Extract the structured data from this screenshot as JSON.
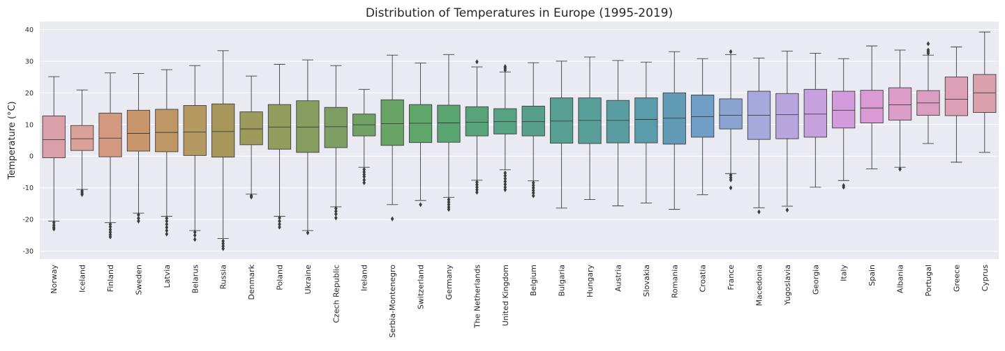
{
  "chart_data": {
    "type": "box",
    "title": "Distribution of Temperatures in Europe (1995-2019)",
    "xlabel": "",
    "ylabel": "Temperature (°C)",
    "ylim": [
      -32.5,
      42.5
    ],
    "yticks": [
      -30,
      -20,
      -10,
      0,
      10,
      20,
      30,
      40
    ],
    "grid": true,
    "background": "#eaeaf2",
    "median_color": "#3d3d3d",
    "categories": [
      "Norway",
      "Iceland",
      "Finland",
      "Sweden",
      "Latvia",
      "Belarus",
      "Russia",
      "Denmark",
      "Poland",
      "Ukraine",
      "Czech Republic",
      "Ireland",
      "Serbia-Montenegro",
      "Switzerland",
      "Germany",
      "The Netherlands",
      "United Kingdom",
      "Belgium",
      "Bulgaria",
      "Hungary",
      "Austria",
      "Slovakia",
      "Romania",
      "Croatia",
      "France",
      "Macedonia",
      "Yugoslavia",
      "Georgia",
      "Italy",
      "Spain",
      "Albania",
      "Portugal",
      "Greece",
      "Cyprus"
    ],
    "boxes": [
      {
        "category": "Norway",
        "color": "#d9a0aa",
        "q1": -0.5,
        "median": 5.2,
        "q3": 12.7,
        "whisker_low": -20.5,
        "whisker_high": 25.1,
        "outliers": [
          -21.0,
          -21.8,
          -22.5,
          -23.0
        ]
      },
      {
        "category": "Iceland",
        "color": "#d9a197",
        "q1": 1.8,
        "median": 5.5,
        "q3": 9.7,
        "whisker_low": -10.5,
        "whisker_high": 20.9,
        "outliers": [
          -11.0,
          -11.6,
          -12.1
        ]
      },
      {
        "category": "Finland",
        "color": "#d49a80",
        "q1": -0.2,
        "median": 5.7,
        "q3": 13.6,
        "whisker_low": -21.0,
        "whisker_high": 26.3,
        "outliers": [
          -21.5,
          -22.3,
          -23.2,
          -24.0,
          -24.8,
          -25.5
        ]
      },
      {
        "category": "Sweden",
        "color": "#c8966a",
        "q1": 1.6,
        "median": 7.2,
        "q3": 14.5,
        "whisker_low": -18.0,
        "whisker_high": 26.1,
        "outliers": [
          -18.5,
          -19.6,
          -20.5
        ]
      },
      {
        "category": "Latvia",
        "color": "#be9764",
        "q1": 1.4,
        "median": 7.5,
        "q3": 14.8,
        "whisker_low": -19.0,
        "whisker_high": 27.3,
        "outliers": [
          -19.6,
          -20.5,
          -21.5,
          -22.5,
          -23.5,
          -24.6
        ]
      },
      {
        "category": "Belarus",
        "color": "#b49960",
        "q1": 0.2,
        "median": 7.6,
        "q3": 16.0,
        "whisker_low": -23.5,
        "whisker_high": 28.6,
        "outliers": [
          -24.0,
          -25.0,
          -26.3
        ]
      },
      {
        "category": "Russia",
        "color": "#a7975b",
        "q1": -0.3,
        "median": 7.8,
        "q3": 16.5,
        "whisker_low": -26.0,
        "whisker_high": 33.3,
        "outliers": [
          -26.8,
          -27.6,
          -28.4,
          -29.2
        ]
      },
      {
        "category": "Denmark",
        "color": "#9d9a5c",
        "q1": 3.6,
        "median": 8.6,
        "q3": 14.0,
        "whisker_low": -12.0,
        "whisker_high": 25.3,
        "outliers": [
          -12.5,
          -12.9
        ]
      },
      {
        "category": "Poland",
        "color": "#929c5c",
        "q1": 2.2,
        "median": 9.2,
        "q3": 16.3,
        "whisker_low": -19.0,
        "whisker_high": 29.0,
        "outliers": [
          -19.5,
          -20.5,
          -21.5,
          -22.4
        ]
      },
      {
        "category": "Ukraine",
        "color": "#879d5f",
        "q1": 1.2,
        "median": 9.2,
        "q3": 17.5,
        "whisker_low": -23.5,
        "whisker_high": 30.4,
        "outliers": [
          -24.2
        ]
      },
      {
        "category": "Czech Republic",
        "color": "#7d9f63",
        "q1": 2.7,
        "median": 9.3,
        "q3": 15.4,
        "whisker_low": -16.0,
        "whisker_high": 28.6,
        "outliers": [
          -16.5,
          -17.4,
          -18.3,
          -19.5
        ]
      },
      {
        "category": "Ireland",
        "color": "#72a165",
        "q1": 6.4,
        "median": 9.9,
        "q3": 13.3,
        "whisker_low": -3.5,
        "whisker_high": 21.1,
        "outliers": [
          -4.2,
          -5.0,
          -5.8,
          -6.5,
          -7.5,
          -8.4
        ]
      },
      {
        "category": "Serbia-Montenegro",
        "color": "#67a466",
        "q1": 3.4,
        "median": 10.3,
        "q3": 17.8,
        "whisker_low": -15.3,
        "whisker_high": 31.9,
        "outliers": [
          -19.8
        ]
      },
      {
        "category": "Switzerland",
        "color": "#5ea66a",
        "q1": 4.3,
        "median": 10.4,
        "q3": 16.3,
        "whisker_low": -14.0,
        "whisker_high": 29.4,
        "outliers": [
          -15.3
        ]
      },
      {
        "category": "Germany",
        "color": "#5aa572",
        "q1": 4.4,
        "median": 10.5,
        "q3": 16.1,
        "whisker_low": -13.0,
        "whisker_high": 32.1,
        "outliers": [
          -13.7,
          -14.5,
          -15.3,
          -16.1,
          -16.8
        ]
      },
      {
        "category": "The Netherlands",
        "color": "#58a47a",
        "q1": 6.4,
        "median": 10.7,
        "q3": 15.6,
        "whisker_low": -7.6,
        "whisker_high": 28.2,
        "outliers": [
          -8.2,
          -9.0,
          -9.8,
          -10.6,
          -11.4,
          29.8
        ]
      },
      {
        "category": "United Kingdom",
        "color": "#57a282",
        "q1": 7.0,
        "median": 10.9,
        "q3": 15.0,
        "whisker_low": -4.3,
        "whisker_high": 26.6,
        "outliers": [
          -5.3,
          -6.2,
          -7.1,
          -8.0,
          -8.9,
          -9.8,
          -10.6,
          27.2,
          27.8,
          28.3
        ]
      },
      {
        "category": "Belgium",
        "color": "#56a08b",
        "q1": 6.4,
        "median": 10.9,
        "q3": 15.8,
        "whisker_low": -7.8,
        "whisker_high": 29.5,
        "outliers": [
          -8.4,
          -9.2,
          -10.0,
          -10.8,
          -11.6,
          -12.5
        ]
      },
      {
        "category": "Bulgaria",
        "color": "#579f92",
        "q1": 4.1,
        "median": 11.1,
        "q3": 18.4,
        "whisker_low": -16.4,
        "whisker_high": 30.0,
        "outliers": []
      },
      {
        "category": "Hungary",
        "color": "#589e99",
        "q1": 4.0,
        "median": 11.3,
        "q3": 18.4,
        "whisker_low": -13.7,
        "whisker_high": 31.3,
        "outliers": []
      },
      {
        "category": "Austria",
        "color": "#599ca1",
        "q1": 4.2,
        "median": 11.3,
        "q3": 17.6,
        "whisker_low": -15.7,
        "whisker_high": 30.2,
        "outliers": []
      },
      {
        "category": "Slovakia",
        "color": "#5b9caa",
        "q1": 4.2,
        "median": 11.6,
        "q3": 18.4,
        "whisker_low": -14.8,
        "whisker_high": 29.7,
        "outliers": []
      },
      {
        "category": "Romania",
        "color": "#619bb6",
        "q1": 3.8,
        "median": 12.0,
        "q3": 20.0,
        "whisker_low": -16.8,
        "whisker_high": 33.0,
        "outliers": []
      },
      {
        "category": "Croatia",
        "color": "#719ec6",
        "q1": 6.0,
        "median": 12.5,
        "q3": 19.3,
        "whisker_low": -12.2,
        "whisker_high": 30.8,
        "outliers": []
      },
      {
        "category": "France",
        "color": "#8aa5d1",
        "q1": 8.6,
        "median": 12.9,
        "q3": 18.1,
        "whisker_low": -5.5,
        "whisker_high": 32.1,
        "outliers": [
          -6.0,
          -6.8,
          -7.5,
          -10.0,
          33.0
        ]
      },
      {
        "category": "Macedonia",
        "color": "#a6a9db",
        "q1": 5.3,
        "median": 12.9,
        "q3": 20.5,
        "whisker_low": -16.3,
        "whisker_high": 31.0,
        "outliers": [
          -17.6
        ]
      },
      {
        "category": "Yugoslavia",
        "color": "#b7a6de",
        "q1": 5.5,
        "median": 13.1,
        "q3": 19.8,
        "whisker_low": -15.8,
        "whisker_high": 33.2,
        "outliers": [
          -17.0
        ]
      },
      {
        "category": "Georgia",
        "color": "#c6a1dd",
        "q1": 6.0,
        "median": 13.3,
        "q3": 21.1,
        "whisker_low": -9.8,
        "whisker_high": 32.5,
        "outliers": []
      },
      {
        "category": "Italy",
        "color": "#d29cdc",
        "q1": 8.9,
        "median": 14.5,
        "q3": 20.5,
        "whisker_low": -7.7,
        "whisker_high": 30.8,
        "outliers": [
          -9.3,
          -9.8
        ]
      },
      {
        "category": "Spain",
        "color": "#da9bd4",
        "q1": 10.5,
        "median": 15.2,
        "q3": 20.8,
        "whisker_low": -4.0,
        "whisker_high": 34.8,
        "outliers": []
      },
      {
        "category": "Albania",
        "color": "#dc9dc9",
        "q1": 11.4,
        "median": 16.2,
        "q3": 21.6,
        "whisker_low": -3.5,
        "whisker_high": 33.5,
        "outliers": [
          -4.1
        ]
      },
      {
        "category": "Portugal",
        "color": "#dc9ec0",
        "q1": 12.9,
        "median": 16.8,
        "q3": 20.7,
        "whisker_low": 4.0,
        "whisker_high": 31.9,
        "outliers": [
          32.5,
          33.0,
          33.5,
          35.5
        ]
      },
      {
        "category": "Greece",
        "color": "#db9fb6",
        "q1": 12.8,
        "median": 18.0,
        "q3": 25.0,
        "whisker_low": -1.9,
        "whisker_high": 34.5,
        "outliers": []
      },
      {
        "category": "Cyprus",
        "color": "#daa0ad",
        "q1": 13.8,
        "median": 20.0,
        "q3": 25.8,
        "whisker_low": 1.2,
        "whisker_high": 39.2,
        "outliers": []
      }
    ]
  }
}
